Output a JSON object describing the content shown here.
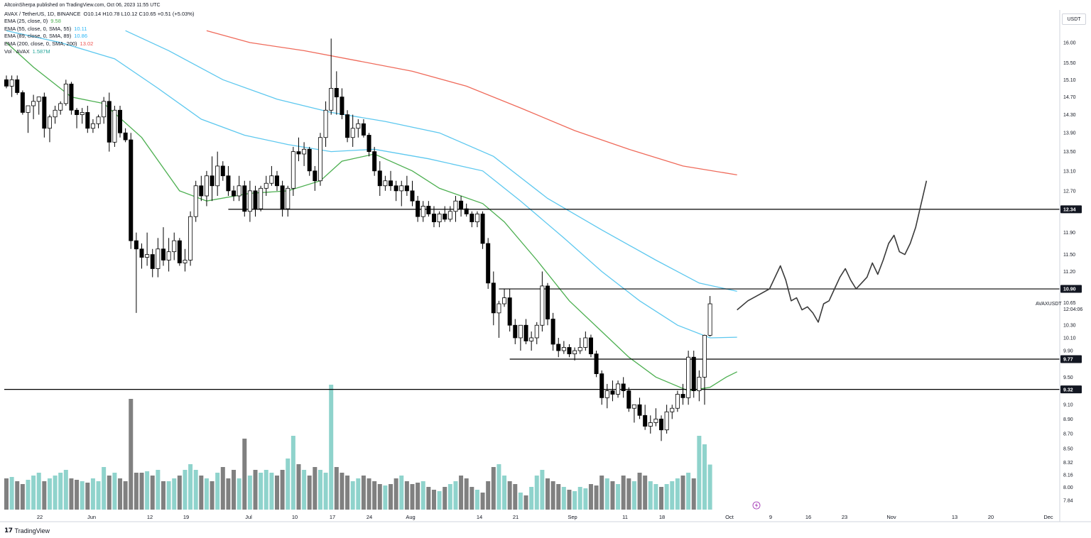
{
  "header": {
    "publisher_line": "AltcoinSherpa published on TradingView.com, Oct 06, 2023 11:55 UTC",
    "symbol": "AVAX / TetherUS, 1D, BINANCE",
    "ohlc": "O10.14 H10.78 L10.12 C10.65 +0.51 (+5.03%)"
  },
  "indicators": [
    {
      "label": "EMA (25, close, 0)",
      "value": "9.58",
      "color": "#4caf50"
    },
    {
      "label": "EMA (55, close, 0, SMA, 55)",
      "value": "10.11",
      "color": "#29b6f6"
    },
    {
      "label": "EMA (89, close, 0, SMA, 89)",
      "value": "10.86",
      "color": "#29b6f6"
    },
    {
      "label": "EMA (200, close, 0, SMA, 200)",
      "value": "13.02",
      "color": "#ef5350"
    },
    {
      "label": "Vol · AVAX",
      "value": "1.587M",
      "color": "#26a69a"
    }
  ],
  "price_scale": {
    "currency": "USDT",
    "ticks": [
      "16.00",
      "15.50",
      "15.10",
      "14.70",
      "14.30",
      "13.90",
      "13.50",
      "13.10",
      "12.70",
      "11.90",
      "11.50",
      "11.20",
      "10.30",
      "10.10",
      "9.90",
      "9.50",
      "9.10",
      "8.90",
      "8.70",
      "8.50",
      "8.32",
      "8.16",
      "8.00",
      "7.84"
    ],
    "highlighted_levels": [
      "12.34",
      "10.90",
      "9.77",
      "9.32"
    ],
    "symbol_tag": "AVAXUSDT",
    "last_price": "10.65",
    "countdown": "12:04:06"
  },
  "time_axis": {
    "labels": [
      "22",
      "Jun",
      "12",
      "19",
      "Jul",
      "10",
      "17",
      "24",
      "Aug",
      "14",
      "21",
      "Sep",
      "11",
      "18",
      "Oct",
      "9",
      "16",
      "23",
      "Nov",
      "13",
      "20",
      "Dec"
    ]
  },
  "footer": {
    "brand": "TradingView"
  },
  "colors": {
    "up_candle": "#ffffff",
    "down_candle": "#000000",
    "vol_up": "#8fd3cc",
    "vol_down": "#808080",
    "ema25": "#4caf50",
    "ema55": "#5dc8ef",
    "ema89": "#5dc8ef",
    "ema200": "#ef6a5a",
    "projection": "#3a3a3a"
  },
  "chart_data": {
    "type": "candlestick",
    "symbol": "AVAX / TetherUS",
    "interval": "1D",
    "exchange": "BINANCE",
    "ylim": [
      7.7,
      16.3
    ],
    "y_scale": "log",
    "x_range": [
      "2023-05-17",
      "2023-12-01"
    ],
    "candles_start": "2023-05-18",
    "candles": [
      [
        15.1,
        15.2,
        14.9,
        14.95
      ],
      [
        14.95,
        15.2,
        14.7,
        15.1
      ],
      [
        15.1,
        15.2,
        14.75,
        14.8
      ],
      [
        14.8,
        14.85,
        14.3,
        14.35
      ],
      [
        14.35,
        14.45,
        13.9,
        14.5
      ],
      [
        14.5,
        14.75,
        14.2,
        14.6
      ],
      [
        14.6,
        14.65,
        14.3,
        14.7
      ],
      [
        14.7,
        14.8,
        13.8,
        14.0
      ],
      [
        14.0,
        14.3,
        13.7,
        14.25
      ],
      [
        14.25,
        14.5,
        14.1,
        14.4
      ],
      [
        14.4,
        14.6,
        14.3,
        14.55
      ],
      [
        14.55,
        15.1,
        14.5,
        15.0
      ],
      [
        15.0,
        15.05,
        14.3,
        14.4
      ],
      [
        14.4,
        14.45,
        14.0,
        14.3
      ],
      [
        14.3,
        14.45,
        14.1,
        14.35
      ],
      [
        14.35,
        14.5,
        13.9,
        14.0
      ],
      [
        14.0,
        14.2,
        13.9,
        14.1
      ],
      [
        14.1,
        14.3,
        14.0,
        14.25
      ],
      [
        14.25,
        14.7,
        14.1,
        14.6
      ],
      [
        14.6,
        14.8,
        13.5,
        13.7
      ],
      [
        13.7,
        14.5,
        13.6,
        14.4
      ],
      [
        14.4,
        14.5,
        13.8,
        13.9
      ],
      [
        13.9,
        14.0,
        13.7,
        13.75
      ],
      [
        13.75,
        13.9,
        11.6,
        11.75
      ],
      [
        11.75,
        11.9,
        10.5,
        11.6
      ],
      [
        11.6,
        11.7,
        11.25,
        11.45
      ],
      [
        11.45,
        11.9,
        11.3,
        11.5
      ],
      [
        11.5,
        11.6,
        11.1,
        11.25
      ],
      [
        11.25,
        11.8,
        11.1,
        11.6
      ],
      [
        11.6,
        12.0,
        11.3,
        11.4
      ],
      [
        11.4,
        11.8,
        11.2,
        11.55
      ],
      [
        11.55,
        11.9,
        11.4,
        11.75
      ],
      [
        11.75,
        11.8,
        11.3,
        11.35
      ],
      [
        11.35,
        11.6,
        11.2,
        11.4
      ],
      [
        11.4,
        12.3,
        11.3,
        12.2
      ],
      [
        12.2,
        12.9,
        12.1,
        12.8
      ],
      [
        12.8,
        13.0,
        12.5,
        12.6
      ],
      [
        12.6,
        13.1,
        12.4,
        13.0
      ],
      [
        13.0,
        13.4,
        12.5,
        12.8
      ],
      [
        12.8,
        13.5,
        12.6,
        13.2
      ],
      [
        13.2,
        13.3,
        12.9,
        13.0
      ],
      [
        13.0,
        13.2,
        12.6,
        12.7
      ],
      [
        12.7,
        12.8,
        12.5,
        12.6
      ],
      [
        12.6,
        13.0,
        12.5,
        12.8
      ],
      [
        12.8,
        12.9,
        12.2,
        12.3
      ],
      [
        12.3,
        12.9,
        12.1,
        12.7
      ],
      [
        12.7,
        12.8,
        12.2,
        12.35
      ],
      [
        12.35,
        12.8,
        12.3,
        12.75
      ],
      [
        12.75,
        13.0,
        12.6,
        12.85
      ],
      [
        12.85,
        13.2,
        12.8,
        13.0
      ],
      [
        13.0,
        13.1,
        12.7,
        12.8
      ],
      [
        12.8,
        12.9,
        12.2,
        12.35
      ],
      [
        12.35,
        12.8,
        12.2,
        12.75
      ],
      [
        12.75,
        13.6,
        12.6,
        13.5
      ],
      [
        13.5,
        13.8,
        13.3,
        13.45
      ],
      [
        13.45,
        13.7,
        13.2,
        13.55
      ],
      [
        13.55,
        13.6,
        13.0,
        13.1
      ],
      [
        13.1,
        13.2,
        12.7,
        12.9
      ],
      [
        12.9,
        13.9,
        12.8,
        13.8
      ],
      [
        13.8,
        14.6,
        13.6,
        14.4
      ],
      [
        14.4,
        16.1,
        14.3,
        14.9
      ],
      [
        14.9,
        15.3,
        14.3,
        14.7
      ],
      [
        14.7,
        14.9,
        14.2,
        14.3
      ],
      [
        14.3,
        14.4,
        13.7,
        13.8
      ],
      [
        13.8,
        14.3,
        13.6,
        14.0
      ],
      [
        14.0,
        14.2,
        13.8,
        14.1
      ],
      [
        14.1,
        14.2,
        13.8,
        13.85
      ],
      [
        13.85,
        13.9,
        13.4,
        13.5
      ],
      [
        13.5,
        13.6,
        13.0,
        13.1
      ],
      [
        13.1,
        13.3,
        12.6,
        12.8
      ],
      [
        12.8,
        13.0,
        12.7,
        12.9
      ],
      [
        12.9,
        13.1,
        12.7,
        12.8
      ],
      [
        12.8,
        12.9,
        12.5,
        12.7
      ],
      [
        12.7,
        12.9,
        12.4,
        12.8
      ],
      [
        12.8,
        13.0,
        12.6,
        12.7
      ],
      [
        12.7,
        12.9,
        12.4,
        12.5
      ],
      [
        12.5,
        12.6,
        12.1,
        12.2
      ],
      [
        12.2,
        12.5,
        12.1,
        12.4
      ],
      [
        12.4,
        12.5,
        12.2,
        12.25
      ],
      [
        12.25,
        12.4,
        12.0,
        12.1
      ],
      [
        12.1,
        12.3,
        12.0,
        12.25
      ],
      [
        12.25,
        12.4,
        12.1,
        12.15
      ],
      [
        12.15,
        12.4,
        12.1,
        12.3
      ],
      [
        12.3,
        12.6,
        12.1,
        12.5
      ],
      [
        12.5,
        12.6,
        12.2,
        12.35
      ],
      [
        12.35,
        12.45,
        12.2,
        12.25
      ],
      [
        12.25,
        12.3,
        12.0,
        12.1
      ],
      [
        12.1,
        12.3,
        12.0,
        12.25
      ],
      [
        12.25,
        12.3,
        11.6,
        11.7
      ],
      [
        11.7,
        11.8,
        10.9,
        11.0
      ],
      [
        11.0,
        11.2,
        10.3,
        10.5
      ],
      [
        10.5,
        10.7,
        10.1,
        10.65
      ],
      [
        10.65,
        10.9,
        10.6,
        10.75
      ],
      [
        10.75,
        10.9,
        10.2,
        10.3
      ],
      [
        10.3,
        10.4,
        10.0,
        10.1
      ],
      [
        10.1,
        10.3,
        9.9,
        10.3
      ],
      [
        10.3,
        10.4,
        10.0,
        10.05
      ],
      [
        10.05,
        10.2,
        9.9,
        10.1
      ],
      [
        10.1,
        10.35,
        10.0,
        10.3
      ],
      [
        10.3,
        11.2,
        10.2,
        10.95
      ],
      [
        10.95,
        11.0,
        10.3,
        10.4
      ],
      [
        10.4,
        10.5,
        9.9,
        10.0
      ],
      [
        10.0,
        10.1,
        9.8,
        9.9
      ],
      [
        9.9,
        10.05,
        9.85,
        9.95
      ],
      [
        9.95,
        10.0,
        9.8,
        9.85
      ],
      [
        9.85,
        9.95,
        9.75,
        9.9
      ],
      [
        9.9,
        10.1,
        9.85,
        9.95
      ],
      [
        9.95,
        10.2,
        9.9,
        10.1
      ],
      [
        10.1,
        10.15,
        9.8,
        9.85
      ],
      [
        9.85,
        9.9,
        9.5,
        9.55
      ],
      [
        9.55,
        9.6,
        9.1,
        9.2
      ],
      [
        9.2,
        9.4,
        9.05,
        9.3
      ],
      [
        9.3,
        9.45,
        9.15,
        9.25
      ],
      [
        9.25,
        9.45,
        9.2,
        9.4
      ],
      [
        9.4,
        9.5,
        9.2,
        9.3
      ],
      [
        9.3,
        9.35,
        9.0,
        9.05
      ],
      [
        9.05,
        9.1,
        8.85,
        9.1
      ],
      [
        9.1,
        9.2,
        8.9,
        8.95
      ],
      [
        8.95,
        9.1,
        8.75,
        8.8
      ],
      [
        8.8,
        8.95,
        8.7,
        8.85
      ],
      [
        8.85,
        9.05,
        8.8,
        8.9
      ],
      [
        8.9,
        8.95,
        8.6,
        8.75
      ],
      [
        8.75,
        9.1,
        8.7,
        9.0
      ],
      [
        9.0,
        9.1,
        8.9,
        9.05
      ],
      [
        9.05,
        9.3,
        9.0,
        9.25
      ],
      [
        9.25,
        9.4,
        9.1,
        9.2
      ],
      [
        9.2,
        9.9,
        9.1,
        9.8
      ],
      [
        9.8,
        9.9,
        9.2,
        9.3
      ],
      [
        9.3,
        9.6,
        9.15,
        9.5
      ],
      [
        9.5,
        10.15,
        9.1,
        10.14
      ],
      [
        10.14,
        10.78,
        10.12,
        10.65
      ]
    ],
    "volume_M": [
      1.1,
      1.15,
      1.0,
      0.9,
      1.05,
      1.2,
      1.3,
      1.0,
      1.1,
      1.2,
      1.3,
      1.4,
      1.1,
      1.05,
      1.0,
      0.95,
      1.1,
      1.0,
      1.5,
      1.2,
      1.3,
      1.1,
      1.0,
      3.9,
      1.3,
      1.3,
      1.35,
      1.2,
      1.4,
      1.0,
      1.0,
      1.1,
      1.2,
      1.4,
      1.6,
      1.4,
      1.2,
      1.1,
      1.0,
      1.3,
      1.5,
      1.1,
      1.4,
      1.1,
      2.5,
      1.2,
      1.4,
      1.3,
      1.4,
      1.3,
      1.2,
      1.4,
      1.8,
      2.6,
      1.6,
      1.4,
      1.2,
      1.5,
      1.4,
      1.3,
      4.4,
      1.5,
      1.3,
      1.2,
      1.0,
      1.1,
      1.2,
      1.1,
      1.0,
      0.9,
      0.85,
      0.9,
      1.1,
      1.2,
      1.0,
      0.9,
      0.95,
      1.0,
      0.8,
      0.7,
      0.65,
      0.8,
      0.9,
      1.0,
      1.2,
      1.1,
      0.8,
      0.7,
      0.6,
      1.0,
      1.5,
      1.6,
      1.2,
      1.0,
      0.9,
      0.6,
      0.5,
      0.8,
      1.2,
      1.4,
      1.1,
      1.0,
      0.9,
      0.8,
      0.7,
      0.65,
      0.8,
      0.75,
      0.9,
      0.85,
      1.2,
      1.1,
      1.0,
      0.9,
      1.2,
      1.1,
      1.0,
      1.3,
      1.2,
      1.0,
      0.9,
      0.8,
      0.9,
      1.0,
      1.1,
      1.2,
      1.3,
      1.1,
      2.6,
      2.3,
      1.587
    ],
    "ema_lines": [
      {
        "name": "EMA 25",
        "color": "#4caf50",
        "points": [
          [
            0,
            16.0
          ],
          [
            5,
            15.4
          ],
          [
            12,
            14.7
          ],
          [
            18,
            14.55
          ],
          [
            25,
            13.8
          ],
          [
            32,
            12.7
          ],
          [
            37,
            12.5
          ],
          [
            45,
            12.65
          ],
          [
            52,
            12.7
          ],
          [
            58,
            12.9
          ],
          [
            62,
            13.3
          ],
          [
            68,
            13.45
          ],
          [
            75,
            13.1
          ],
          [
            80,
            12.75
          ],
          [
            88,
            12.45
          ],
          [
            92,
            12.1
          ],
          [
            98,
            11.4
          ],
          [
            104,
            10.7
          ],
          [
            110,
            10.2
          ],
          [
            115,
            9.8
          ],
          [
            120,
            9.5
          ],
          [
            126,
            9.3
          ],
          [
            130,
            9.35
          ],
          [
            133,
            9.5
          ],
          [
            135,
            9.58
          ]
        ]
      },
      {
        "name": "EMA 55",
        "color": "#29b6f6",
        "points": [
          [
            0,
            16.3
          ],
          [
            10,
            16.0
          ],
          [
            20,
            15.6
          ],
          [
            28,
            14.9
          ],
          [
            36,
            14.2
          ],
          [
            44,
            13.85
          ],
          [
            52,
            13.65
          ],
          [
            60,
            13.5
          ],
          [
            68,
            13.55
          ],
          [
            78,
            13.35
          ],
          [
            88,
            13.1
          ],
          [
            95,
            12.5
          ],
          [
            103,
            11.8
          ],
          [
            110,
            11.2
          ],
          [
            117,
            10.7
          ],
          [
            124,
            10.3
          ],
          [
            130,
            10.1
          ],
          [
            135,
            10.11
          ]
        ]
      },
      {
        "name": "EMA 89",
        "color": "#29b6f6",
        "points": [
          [
            22,
            16.3
          ],
          [
            30,
            15.8
          ],
          [
            40,
            15.1
          ],
          [
            50,
            14.65
          ],
          [
            60,
            14.35
          ],
          [
            70,
            14.15
          ],
          [
            80,
            13.9
          ],
          [
            90,
            13.4
          ],
          [
            100,
            12.55
          ],
          [
            110,
            11.95
          ],
          [
            120,
            11.4
          ],
          [
            128,
            11.0
          ],
          [
            135,
            10.86
          ]
        ]
      },
      {
        "name": "EMA 200",
        "color": "#ef5350",
        "points": [
          [
            37,
            16.3
          ],
          [
            45,
            16.0
          ],
          [
            55,
            15.8
          ],
          [
            65,
            15.55
          ],
          [
            75,
            15.3
          ],
          [
            85,
            14.95
          ],
          [
            95,
            14.45
          ],
          [
            105,
            13.95
          ],
          [
            115,
            13.55
          ],
          [
            125,
            13.2
          ],
          [
            135,
            13.02
          ]
        ]
      }
    ],
    "horizontal_levels": [
      {
        "price": 12.34,
        "from_bar": 41,
        "label": "12.34"
      },
      {
        "price": 10.9,
        "from_bar": 91,
        "label": "10.90"
      },
      {
        "price": 9.77,
        "from_bar": 93,
        "label": "9.77"
      },
      {
        "price": 9.32,
        "from_bar": -1,
        "label": "9.32"
      }
    ],
    "projection_path": [
      [
        135,
        10.55
      ],
      [
        137,
        10.7
      ],
      [
        139,
        10.8
      ],
      [
        141,
        10.9
      ],
      [
        143,
        11.3
      ],
      [
        144,
        11.05
      ],
      [
        145,
        10.7
      ],
      [
        146,
        10.75
      ],
      [
        147,
        10.55
      ],
      [
        148,
        10.6
      ],
      [
        149,
        10.5
      ],
      [
        150,
        10.35
      ],
      [
        151,
        10.65
      ],
      [
        152,
        10.7
      ],
      [
        153,
        10.9
      ],
      [
        154,
        11.1
      ],
      [
        155,
        11.25
      ],
      [
        156,
        11.05
      ],
      [
        157,
        10.9
      ],
      [
        158,
        11.0
      ],
      [
        159,
        11.1
      ],
      [
        160,
        11.35
      ],
      [
        161,
        11.15
      ],
      [
        162,
        11.4
      ],
      [
        163,
        11.7
      ],
      [
        164,
        11.85
      ],
      [
        165,
        11.55
      ],
      [
        166,
        11.5
      ],
      [
        167,
        11.7
      ],
      [
        168,
        12.0
      ],
      [
        170,
        12.9
      ]
    ]
  }
}
